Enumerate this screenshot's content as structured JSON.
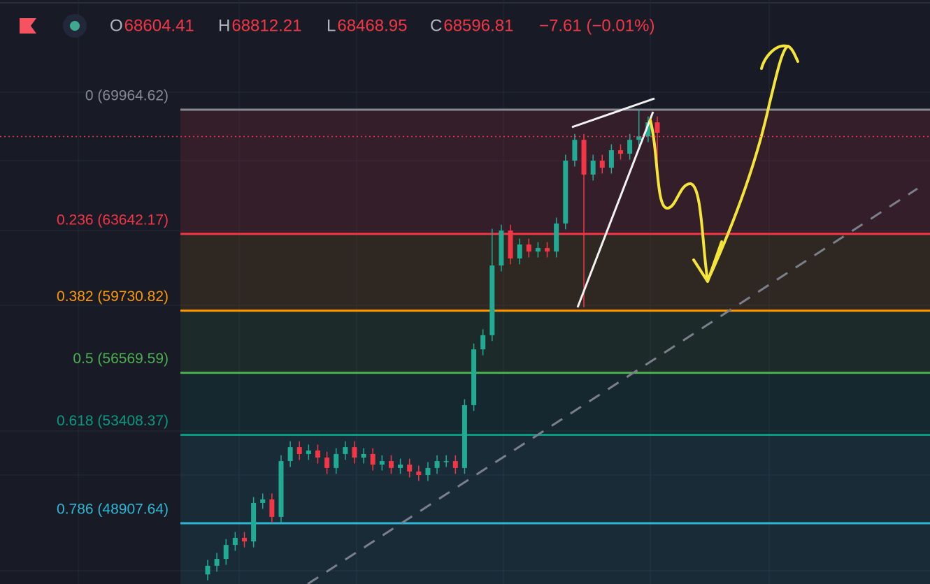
{
  "header": {
    "ohlc": [
      {
        "key": "O",
        "value": "68604.41"
      },
      {
        "key": "H",
        "value": "68812.21"
      },
      {
        "key": "L",
        "value": "68468.95"
      },
      {
        "key": "C",
        "value": "68596.81"
      }
    ],
    "change": "−7.61 (−0.01%)"
  },
  "chart_data": {
    "type": "candlestick",
    "ylim": [
      45812,
      75549
    ],
    "last_price": 68596.81,
    "up_color": "#22ab94",
    "down_color": "#f23645",
    "fib_levels": [
      {
        "label": "0 (69964.62)",
        "price": 69964.62,
        "color": "#868993"
      },
      {
        "label": "0.236 (63642.17)",
        "price": 63642.17,
        "color": "#f23645"
      },
      {
        "label": "0.382 (59730.82)",
        "price": 59730.82,
        "color": "#ff9800"
      },
      {
        "label": "0.5 (56569.59)",
        "price": 56569.59,
        "color": "#4caf50"
      },
      {
        "label": "0.618 (53408.37)",
        "price": 53408.37,
        "color": "#089981"
      },
      {
        "label": "0.786 (48907.64)",
        "price": 48907.64,
        "color": "#2eb7d3"
      }
    ],
    "open": [
      46300,
      46740,
      47090,
      47800,
      48160,
      47980,
      49940,
      50120,
      49230,
      52070,
      52780,
      52430,
      52610,
      52250,
      51720,
      52430,
      52780,
      52250,
      52430,
      51890,
      52070,
      51720,
      51890,
      51540,
      51360,
      51720,
      52070,
      52070,
      51720,
      54920,
      57760,
      58480,
      62030,
      63810,
      62390,
      63100,
      62740,
      62920,
      62740,
      64170,
      67370,
      68430,
      66660,
      67370,
      67010,
      67900,
      67720,
      68430,
      68610,
      69320
    ],
    "high": [
      47040,
      47390,
      48100,
      48460,
      48460,
      50240,
      50420,
      50420,
      52370,
      53080,
      53080,
      52910,
      52910,
      52550,
      52730,
      53080,
      53080,
      52730,
      52730,
      52370,
      52370,
      52190,
      52190,
      51840,
      52020,
      52370,
      52370,
      52370,
      55220,
      58060,
      58780,
      63900,
      64110,
      64110,
      63400,
      63400,
      63220,
      63220,
      64470,
      67670,
      68730,
      68730,
      67670,
      67670,
      68200,
      68200,
      68730,
      69960,
      69620,
      69620
    ],
    "low": [
      46000,
      46440,
      46790,
      47500,
      47680,
      47680,
      49640,
      48930,
      48930,
      51770,
      52130,
      52130,
      51950,
      51420,
      51420,
      52130,
      51950,
      51950,
      51590,
      51590,
      51420,
      51420,
      51240,
      51060,
      51060,
      51420,
      51770,
      51420,
      51420,
      54620,
      57460,
      58180,
      61730,
      62090,
      62090,
      62440,
      62440,
      62440,
      62440,
      63870,
      67070,
      59900,
      66360,
      66710,
      66710,
      67420,
      67420,
      68130,
      68310,
      66900
    ],
    "close": [
      46740,
      47090,
      47800,
      48160,
      47980,
      49940,
      50120,
      49230,
      52070,
      52780,
      52430,
      52610,
      52250,
      51720,
      52430,
      52780,
      52250,
      52430,
      51890,
      52070,
      51720,
      51890,
      51540,
      51360,
      51720,
      52070,
      52070,
      51720,
      54920,
      57760,
      58480,
      62030,
      63810,
      62390,
      63100,
      62740,
      62920,
      62740,
      64170,
      67370,
      68430,
      66660,
      67370,
      67010,
      67900,
      67720,
      68430,
      68610,
      69320,
      68790
    ]
  }
}
